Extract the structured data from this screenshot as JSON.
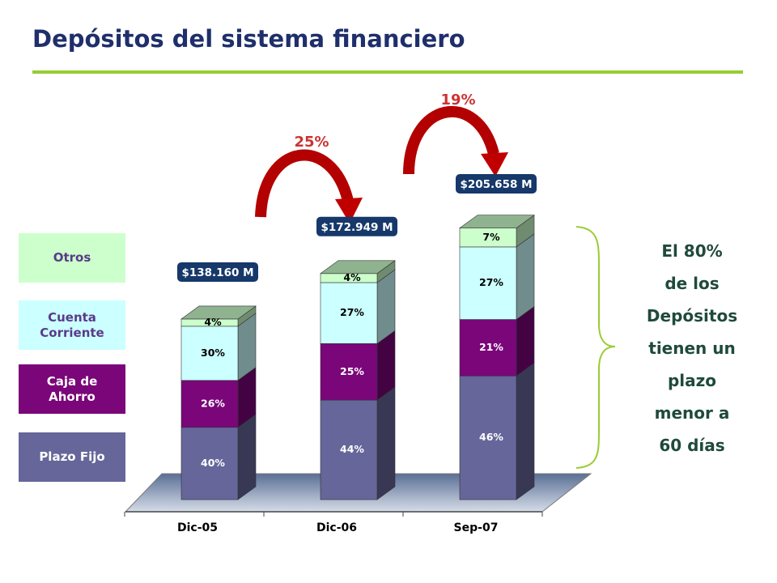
{
  "chart_data": {
    "type": "bar",
    "stacked": true,
    "title": "Depósitos del sistema financiero",
    "categories": [
      "Dic-05",
      "Dic-06",
      "Sep-07"
    ],
    "series": [
      {
        "name": "Plazo Fijo",
        "color": "#66669a",
        "values": [
          40,
          44,
          46
        ],
        "value_labels": [
          "40%",
          "44%",
          "46%"
        ]
      },
      {
        "name": "Caja de Ahorro",
        "color": "#7a067a",
        "values": [
          26,
          25,
          21
        ],
        "value_labels": [
          "26%",
          "25%",
          "21%"
        ]
      },
      {
        "name": "Cuenta Corriente",
        "color": "#ccffff",
        "values": [
          30,
          27,
          27
        ],
        "value_labels": [
          "30%",
          "27%",
          "27%"
        ]
      },
      {
        "name": "Otros",
        "color": "#ccffcc",
        "values": [
          4,
          4,
          7
        ],
        "value_labels": [
          "4%",
          "4%",
          "7%"
        ]
      }
    ],
    "totals": {
      "values": [
        138160,
        172949,
        205658
      ],
      "value_labels": [
        "$138.160 M",
        "$172.949 M",
        "$205.658 M"
      ]
    },
    "growth": {
      "values": [
        25,
        19
      ],
      "value_labels": [
        "25%",
        "19%"
      ]
    },
    "side_note": [
      "El 80%",
      "de los",
      "Depósitos",
      "tienen un",
      "plazo",
      "menor a",
      "60 días"
    ]
  }
}
